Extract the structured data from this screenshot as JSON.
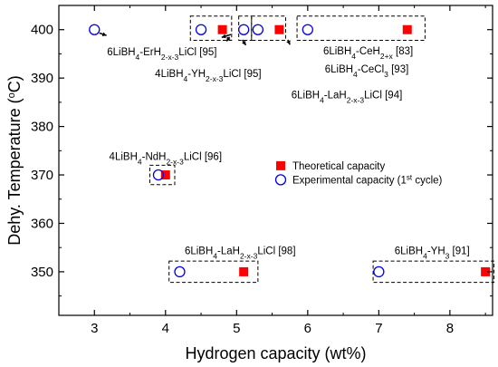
{
  "chart_data": {
    "type": "scatter",
    "xlabel": "Hydrogen capacity (wt%)",
    "ylabel": "Dehy. Temperature (°C)",
    "xlim": [
      2.5,
      8.6
    ],
    "ylim": [
      341,
      405
    ],
    "xticks": [
      3,
      4,
      5,
      6,
      7,
      8
    ],
    "yticks": [
      350,
      360,
      370,
      380,
      390,
      400
    ],
    "grid": false,
    "legend_position": "center-right",
    "series": [
      {
        "name": "Theoretical capacity",
        "marker": "square",
        "color": "#ff0000",
        "points": [
          {
            "x": 4.8,
            "y": 400
          },
          {
            "x": 5.6,
            "y": 400
          },
          {
            "x": 7.4,
            "y": 400
          },
          {
            "x": 4.0,
            "y": 370
          },
          {
            "x": 5.1,
            "y": 350
          },
          {
            "x": 8.5,
            "y": 350
          }
        ]
      },
      {
        "name": "Experimental capacity (1st cycle)",
        "marker": "circle-open",
        "color": "#0000ee",
        "points": [
          {
            "x": 3.0,
            "y": 400
          },
          {
            "x": 4.5,
            "y": 400
          },
          {
            "x": 5.1,
            "y": 400
          },
          {
            "x": 5.3,
            "y": 400
          },
          {
            "x": 6.0,
            "y": 400
          },
          {
            "x": 3.9,
            "y": 370
          },
          {
            "x": 4.2,
            "y": 350
          },
          {
            "x": 7.0,
            "y": 350
          }
        ]
      }
    ],
    "annotations": [
      {
        "text": "6LiBH4-ErH2-x-3LiCl [95]",
        "x": 3.95,
        "y": 395.5
      },
      {
        "text": "4LiBH4-YH2-x-3LiCl [95]",
        "x": 4.6,
        "y": 391
      },
      {
        "text": "6LiBH4-CeH2+x [83]",
        "x": 6.85,
        "y": 395.6
      },
      {
        "text": "6LiBH4-CeCl3 [93]",
        "x": 6.83,
        "y": 391.9
      },
      {
        "text": "6LiBH4-LaH2-x-3LiCl [94]",
        "x": 6.55,
        "y": 386.6
      },
      {
        "text": "4LiBH4-NdH2-x-3LiCl [96]",
        "x": 4.0,
        "y": 373.8
      },
      {
        "text": "6LiBH4-LaH2-x-3LiCl [98]",
        "x": 5.05,
        "y": 354.4
      },
      {
        "text": "6LiBH4-YH3 [91]",
        "x": 7.75,
        "y": 354.4
      }
    ]
  }
}
